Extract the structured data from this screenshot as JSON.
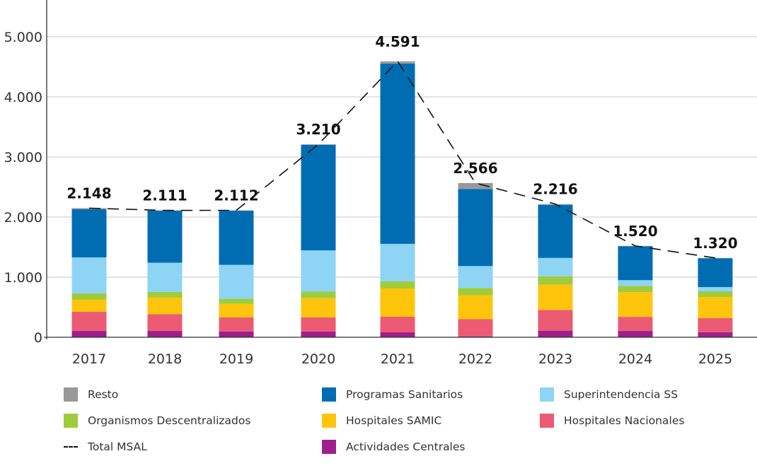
{
  "chart_data": {
    "type": "bar",
    "stacked": true,
    "title": "",
    "xlabel": "",
    "ylabel": "",
    "ylim": [
      0,
      5500
    ],
    "yticks": [
      0,
      1000,
      2000,
      3000,
      4000,
      5000
    ],
    "ytick_labels": [
      "0",
      "1.000",
      "2.000",
      "3.000",
      "4.000",
      "5.000"
    ],
    "grid": true,
    "legend_position": "bottom",
    "categories": [
      "2017",
      "2018",
      "2019",
      "2020",
      "2021",
      "2022",
      "2023",
      "2024",
      "2025"
    ],
    "series": [
      {
        "name": "Actividades Centrales",
        "color": "#9e1f8c",
        "values": [
          105,
          105,
          95,
          95,
          82,
          15,
          110,
          105,
          85
        ]
      },
      {
        "name": "Hospitales Nacionales",
        "color": "#ec5b73",
        "values": [
          318,
          280,
          235,
          235,
          259,
          285,
          345,
          235,
          235
        ]
      },
      {
        "name": "Hospitales SAMIC",
        "color": "#fec50c",
        "values": [
          200,
          275,
          225,
          320,
          471,
          400,
          420,
          410,
          350
        ]
      },
      {
        "name": "Organismos Descentralizados",
        "color": "#9fcb3c",
        "values": [
          106,
          95,
          85,
          110,
          118,
          120,
          140,
          105,
          95
        ]
      },
      {
        "name": "Superintendencia SS",
        "color": "#8dd4f5",
        "values": [
          600,
          485,
          565,
          685,
          624,
          365,
          305,
          95,
          70
        ]
      },
      {
        "name": "Programas Sanitarios",
        "color": "#006db3",
        "values": [
          800,
          866,
          900,
          1755,
          3000,
          1280,
          880,
          565,
          480
        ]
      },
      {
        "name": "Resto",
        "color": "#999999",
        "values": [
          19,
          5,
          7,
          10,
          37,
          101,
          16,
          5,
          5
        ]
      }
    ],
    "line": {
      "name": "Total MSAL",
      "style": "dashed",
      "color": "#111111",
      "values": [
        2148,
        2111,
        2112,
        3210,
        4591,
        2566,
        2216,
        1520,
        1320
      ],
      "labels": [
        "2.148",
        "2.111",
        "2.112",
        "3.210",
        "4.591",
        "2.566",
        "2.216",
        "1.520",
        "1.320"
      ]
    }
  },
  "legend": {
    "items": [
      {
        "label": "Resto",
        "color": "#999999",
        "kind": "swatch"
      },
      {
        "label": "Programas Sanitarios",
        "color": "#006db3",
        "kind": "swatch"
      },
      {
        "label": "Superintendencia SS",
        "color": "#8dd4f5",
        "kind": "swatch"
      },
      {
        "label": "Organismos Descentralizados",
        "color": "#9fcb3c",
        "kind": "swatch"
      },
      {
        "label": "Hospitales SAMIC",
        "color": "#fec50c",
        "kind": "swatch"
      },
      {
        "label": "Hospitales Nacionales",
        "color": "#ec5b73",
        "kind": "swatch"
      },
      {
        "label": "Total MSAL",
        "color": "#111111",
        "kind": "dash"
      },
      {
        "label": "Actividades Centrales",
        "color": "#9e1f8c",
        "kind": "swatch"
      }
    ]
  }
}
